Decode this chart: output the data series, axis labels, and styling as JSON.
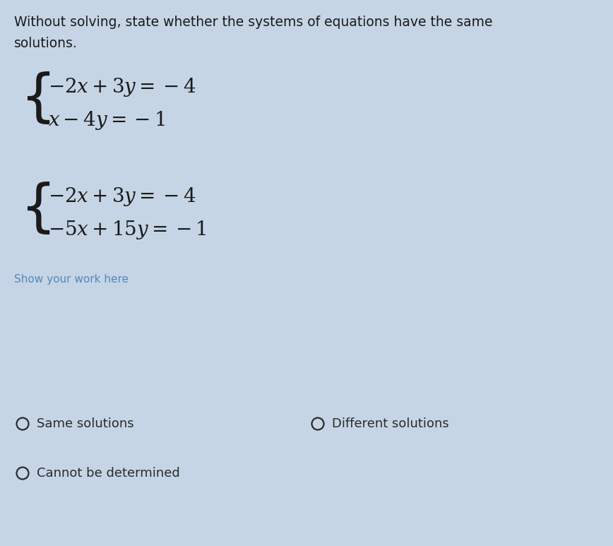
{
  "background_color": "#c5d5e5",
  "title_line1": "Without solving, state whether the systems of equations have the same",
  "title_line2": "solutions.",
  "system1_eq1": "$-2x + 3y = -4$",
  "system1_eq2": "$x - 4y = -1$",
  "system2_eq1": "$-2x + 3y = -4$",
  "system2_eq2": "$-5x + 15y = -1$",
  "work_label": "Show your work here",
  "option1": "Same solutions",
  "option2": "Different solutions",
  "option3": "Cannot be determined",
  "text_color": "#1a1a1a",
  "title_color": "#1a1a1a",
  "work_color": "#5588bb",
  "option_color": "#2a2a2a",
  "brace_color": "#1a1a1a",
  "title_fontsize": 13.5,
  "eq_fontsize": 20,
  "work_fontsize": 11,
  "option_fontsize": 13,
  "brace_fontsize": 58
}
